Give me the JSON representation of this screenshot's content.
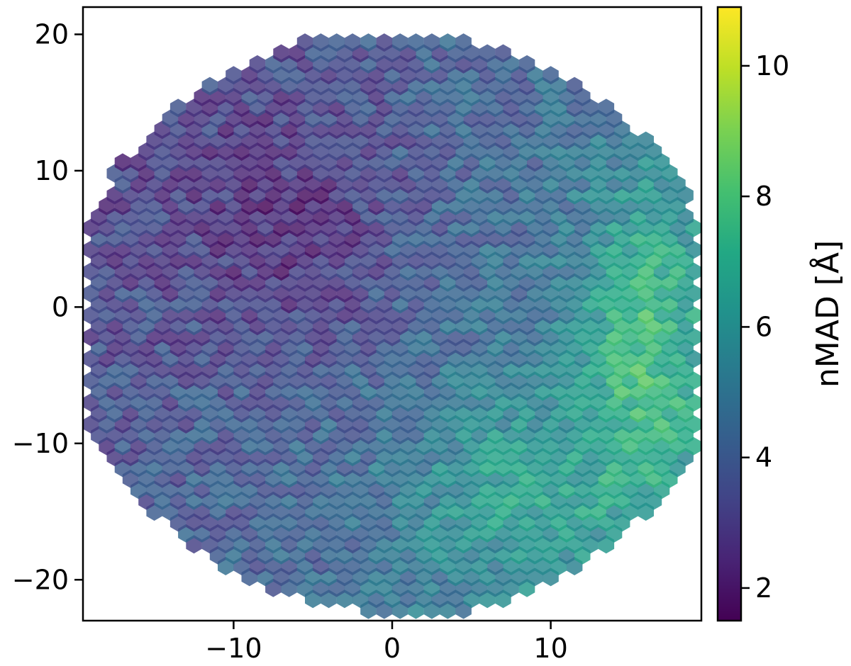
{
  "chart_data": {
    "type": "hexbin",
    "title": "",
    "xlabel": "",
    "ylabel": "",
    "xlim": [
      -19.5,
      19.5
    ],
    "ylim": [
      -23,
      22
    ],
    "xticks": [
      {
        "value": -10,
        "label": "−10"
      },
      {
        "value": 0,
        "label": "0"
      },
      {
        "value": 10,
        "label": "10"
      }
    ],
    "yticks": [
      {
        "value": 20,
        "label": "20"
      },
      {
        "value": 10,
        "label": "10"
      },
      {
        "value": 0,
        "label": "0"
      },
      {
        "value": -10,
        "label": "−10"
      },
      {
        "value": -20,
        "label": "−20"
      }
    ],
    "grid": false,
    "colormap": "viridis",
    "colorbar": {
      "label": "nMAD [Å]",
      "range": [
        1.5,
        10.9
      ],
      "ticks": [
        {
          "value": 2,
          "label": "2"
        },
        {
          "value": 4,
          "label": "4"
        },
        {
          "value": 6,
          "label": "6"
        },
        {
          "value": 8,
          "label": "8"
        },
        {
          "value": 10,
          "label": "10"
        }
      ]
    },
    "hex_grid": {
      "spacing_x": 1.0,
      "spacing_y": 0.8,
      "hexagons_cover_field": "approximately circular field, x from about -19 to 19, y from about -22.5 to 21.5"
    },
    "value_trend": {
      "low_region": "upper-left to center (about 2–4 Å)",
      "high_region": "right edge and lower-right (about 7–11 Å)",
      "typical": "about 4.5 Å"
    }
  }
}
